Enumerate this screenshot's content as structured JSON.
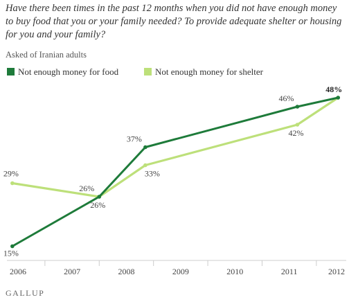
{
  "title": "Have there been times in the past 12 months when you did not have enough money to buy food that you or your family needed? To provide adequate shelter or housing for you and your family?",
  "subtitle": "Asked of Iranian adults",
  "footer": "GALLUP",
  "colors": {
    "food": "#1e7b3a",
    "shelter": "#bde07a"
  },
  "chart_data": {
    "type": "line",
    "x_axis_ticks": [
      "2006",
      "2007",
      "2008",
      "2009",
      "2010",
      "2011",
      "2012"
    ],
    "series": [
      {
        "name": "Not enough money for food",
        "x": [
          2005.9,
          2007.5,
          2008.35,
          2011.15,
          2011.9
        ],
        "values": [
          15,
          26,
          37,
          46,
          48
        ],
        "labels": [
          "15%",
          "26%",
          "37%",
          "46%",
          "48%"
        ]
      },
      {
        "name": "Not enough money for shelter",
        "x": [
          2005.9,
          2007.5,
          2008.35,
          2011.15,
          2011.9
        ],
        "values": [
          29,
          26,
          33,
          42,
          48
        ],
        "labels": [
          "29%",
          "26%",
          "33%",
          "42%",
          "48%"
        ]
      }
    ],
    "ylim": [
      12,
      50
    ],
    "xlim": [
      2005.8,
      2012.05
    ],
    "grid": false,
    "legend_position": "top-left"
  }
}
